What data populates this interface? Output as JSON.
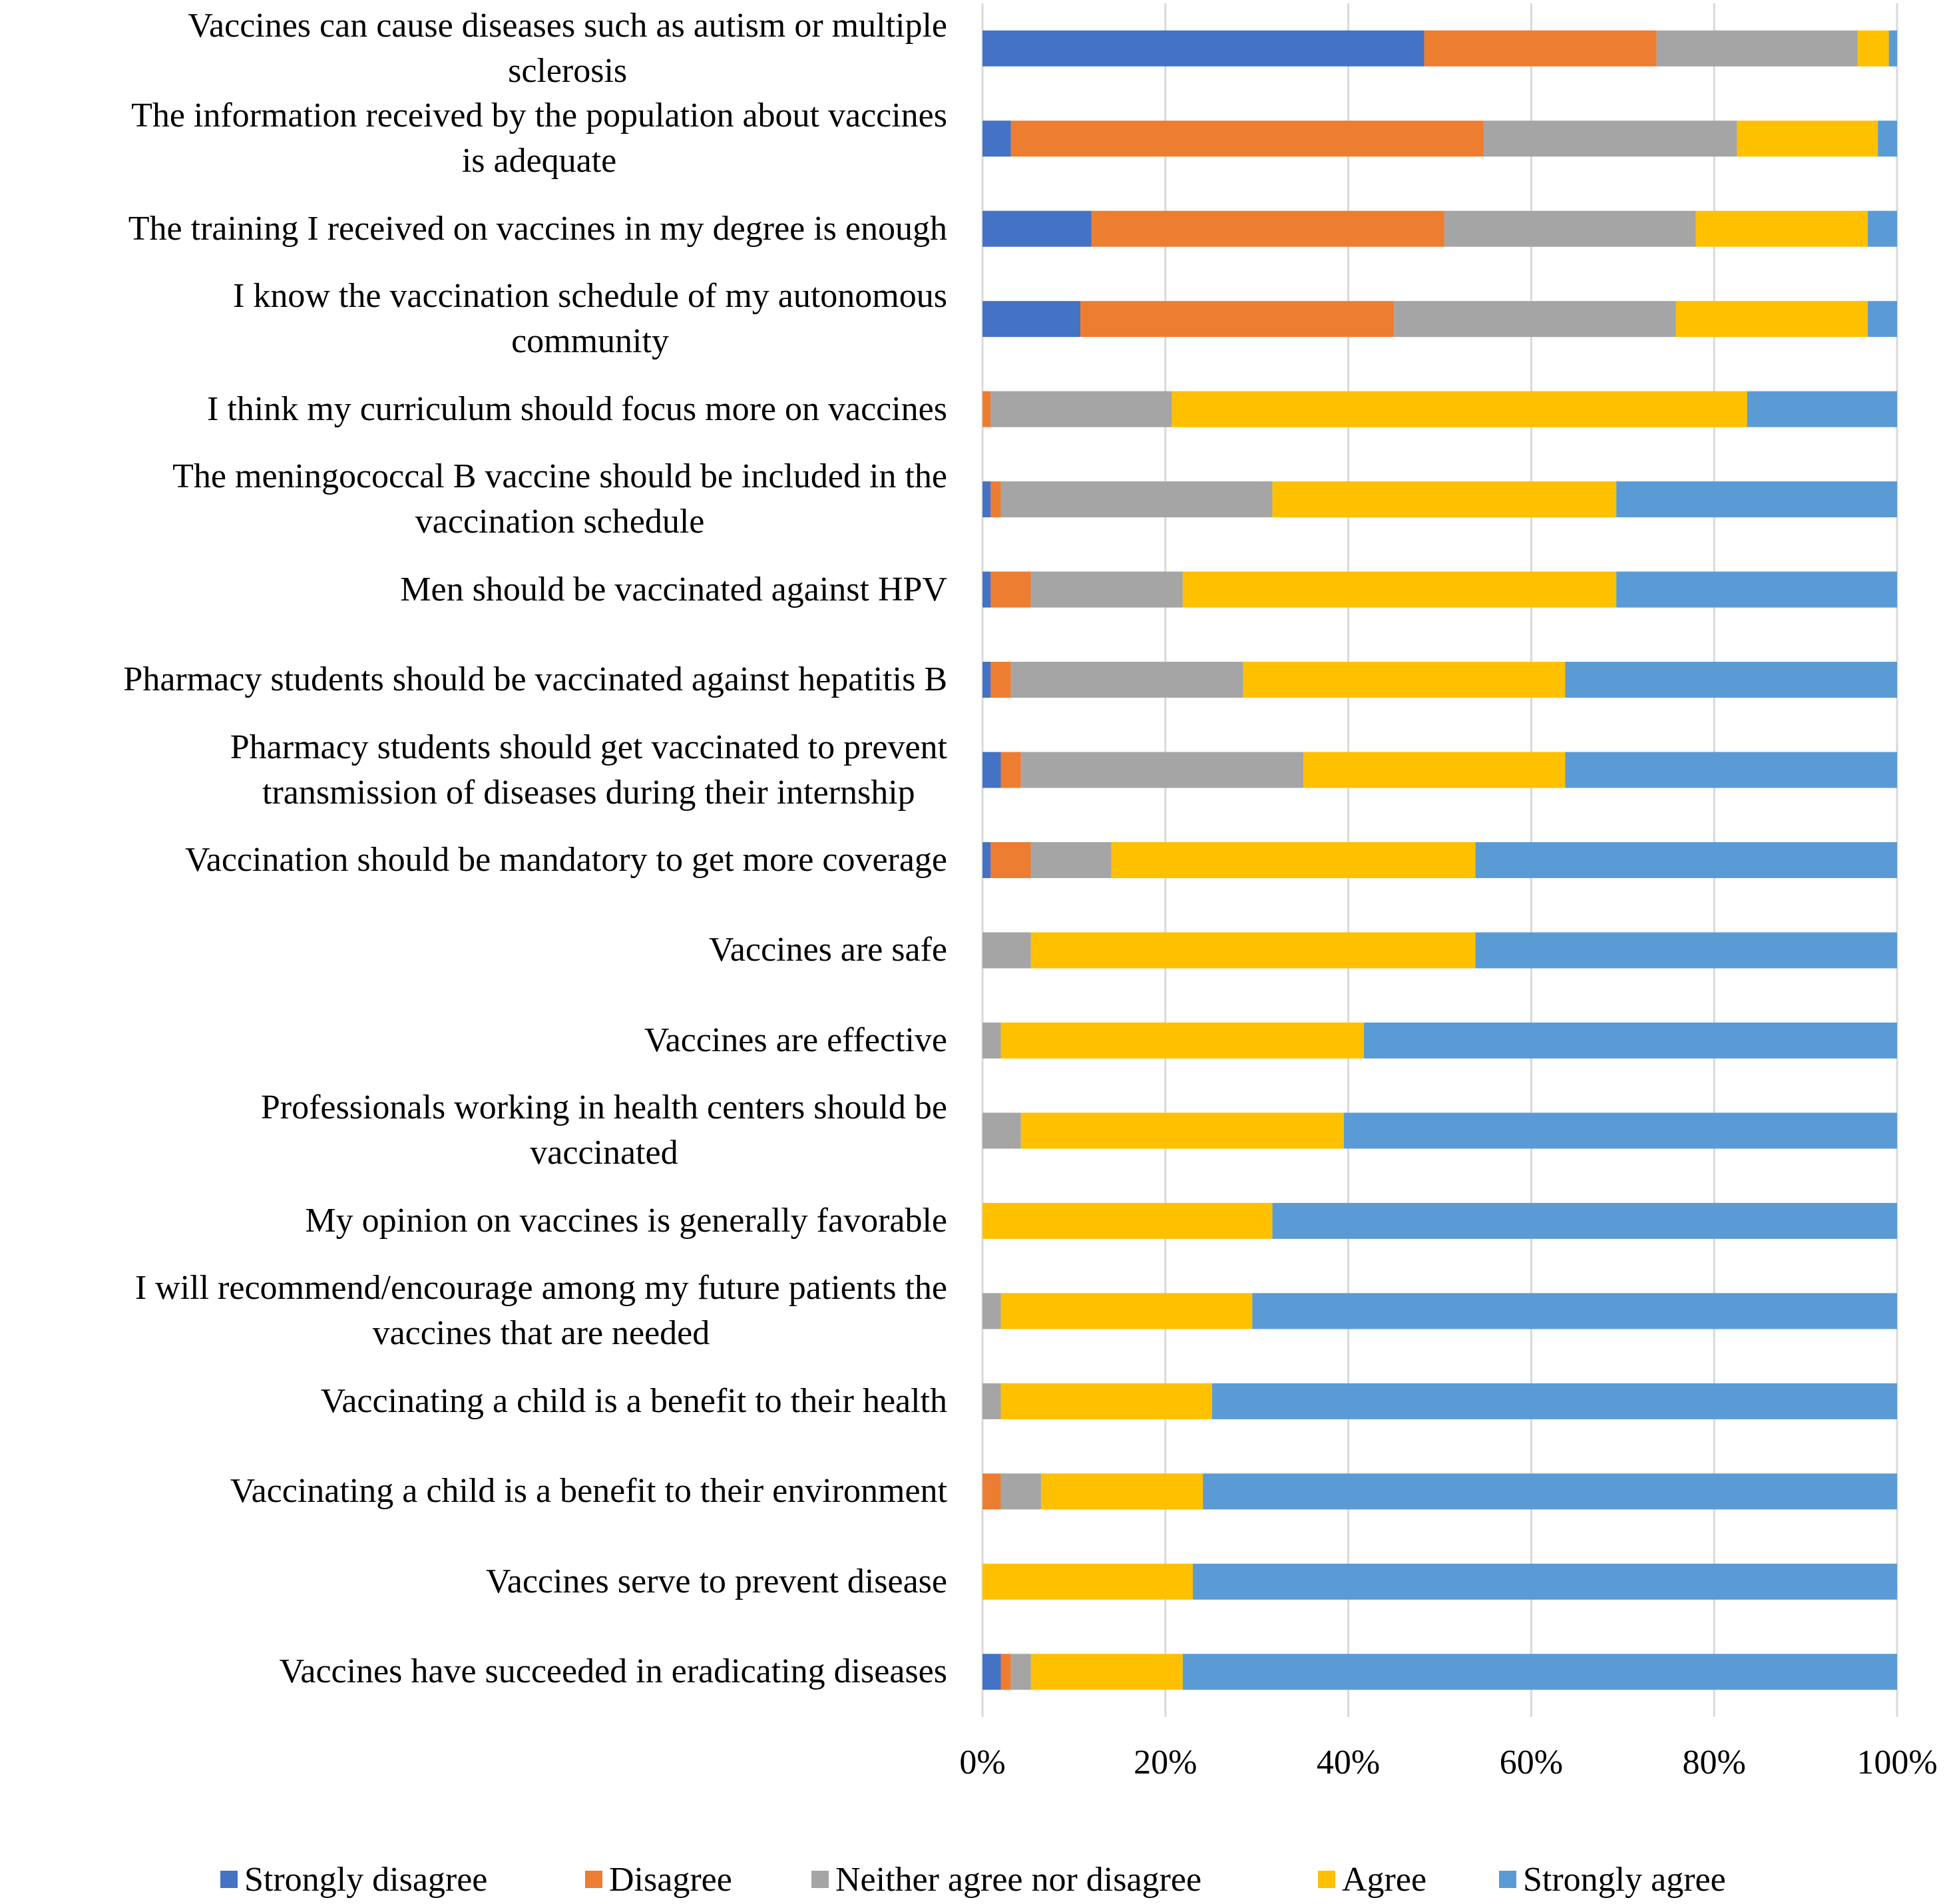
{
  "chart_data": {
    "type": "bar",
    "orientation": "horizontal",
    "stacked": "percent",
    "title": "",
    "xlabel": "",
    "ylabel": "",
    "xlim": [
      0,
      100
    ],
    "x_ticks": [
      "0%",
      "20%",
      "40%",
      "60%",
      "80%",
      "100%"
    ],
    "grid": true,
    "legend_position": "bottom",
    "categories": [
      [
        "Vaccines can cause diseases such as autism or multiple",
        "sclerosis"
      ],
      [
        "The information received by the population about vaccines",
        "is adequate"
      ],
      [
        "The training I received on vaccines in my degree is enough"
      ],
      [
        "I know the vaccination schedule of my autonomous",
        "community"
      ],
      [
        "I think my curriculum should focus more on vaccines"
      ],
      [
        "The meningococcal B vaccine should be included in the",
        "vaccination schedule"
      ],
      [
        "Men should be vaccinated against HPV"
      ],
      [
        "Pharmacy students should be vaccinated against hepatitis B"
      ],
      [
        "Pharmacy students should get vaccinated to prevent",
        "transmission of diseases during their internship"
      ],
      [
        "Vaccination should be mandatory to get more coverage"
      ],
      [
        "Vaccines are safe"
      ],
      [
        "Vaccines are effective"
      ],
      [
        "Professionals working in health centers should be",
        "vaccinated"
      ],
      [
        "My opinion on vaccines is generally favorable"
      ],
      [
        "I will recommend/encourage among my future patients the",
        "vaccines that are needed"
      ],
      [
        "Vaccinating a child is a benefit to their health"
      ],
      [
        "Vaccinating a child is a benefit to their environment"
      ],
      [
        "Vaccines serve to prevent disease"
      ],
      [
        "Vaccines have succeeded in eradicating diseases"
      ]
    ],
    "series": [
      {
        "name": "Strongly disagree",
        "color": "#4472C4",
        "values": [
          48.3,
          3.1,
          11.9,
          10.7,
          0,
          0.9,
          0.9,
          0.9,
          2.0,
          0.9,
          0,
          0,
          0,
          0,
          0,
          0,
          0,
          0,
          2.0
        ]
      },
      {
        "name": "Disagree",
        "color": "#ED7D31",
        "values": [
          25.4,
          51.7,
          38.6,
          34.3,
          0.9,
          1.1,
          4.4,
          2.2,
          2.2,
          4.4,
          0,
          0,
          0,
          0,
          0,
          0,
          2.0,
          0,
          1.1
        ]
      },
      {
        "name": "Neither agree nor disagree",
        "color": "#A5A5A5",
        "values": [
          22.0,
          27.7,
          27.5,
          30.8,
          19.8,
          29.7,
          16.6,
          25.4,
          30.9,
          8.8,
          5.3,
          2.0,
          4.2,
          0,
          2.0,
          2.0,
          4.4,
          0,
          2.2
        ]
      },
      {
        "name": "Agree",
        "color": "#FFC000",
        "values": [
          3.4,
          15.4,
          18.8,
          21.0,
          62.9,
          37.6,
          47.4,
          35.2,
          28.6,
          39.8,
          48.6,
          39.7,
          35.3,
          31.7,
          27.5,
          23.1,
          17.7,
          23.0,
          16.6
        ]
      },
      {
        "name": "Strongly agree",
        "color": "#5B9BD5",
        "values": [
          0.9,
          2.1,
          3.2,
          3.2,
          16.4,
          30.7,
          30.7,
          36.3,
          36.3,
          46.1,
          46.1,
          58.3,
          60.5,
          68.3,
          70.5,
          74.9,
          75.9,
          77.0,
          78.1
        ]
      }
    ]
  },
  "colors": {
    "gridline": "#D9D9D9",
    "text": "#000000",
    "background": "#FFFFFF"
  }
}
